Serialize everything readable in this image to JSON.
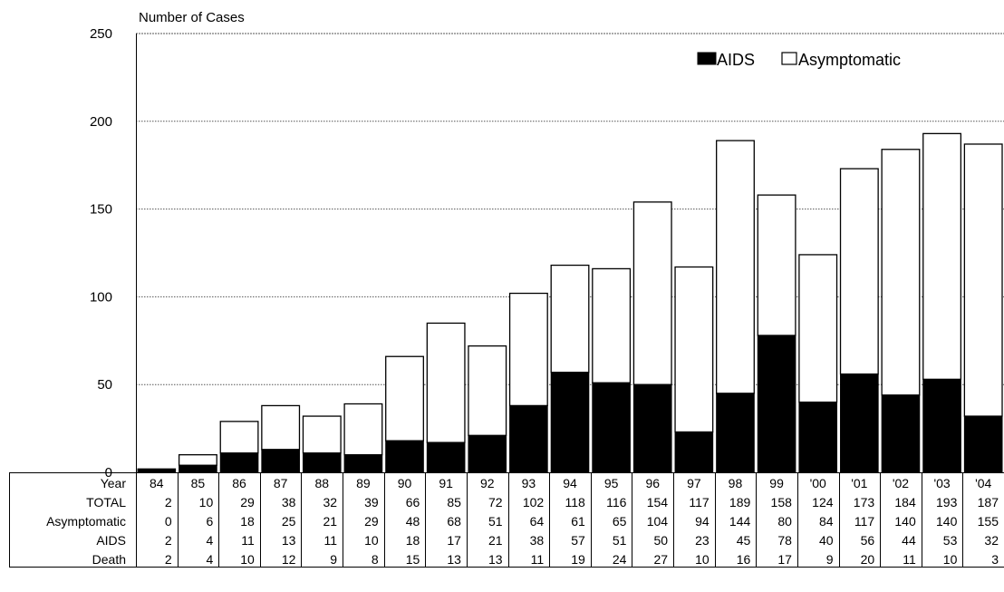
{
  "chart_data": {
    "type": "bar",
    "stacked": true,
    "ylabel": "Number of Cases",
    "ylim": [
      0,
      250
    ],
    "yticks": [
      0,
      50,
      100,
      150,
      200,
      250
    ],
    "grid": "horizontal dotted",
    "legend_position": "top-right",
    "categories": [
      "84",
      "85",
      "86",
      "87",
      "88",
      "89",
      "90",
      "91",
      "92",
      "93",
      "94",
      "95",
      "96",
      "97",
      "98",
      "99",
      "'00",
      "'01",
      "'02",
      "'03",
      "'04"
    ],
    "series": [
      {
        "name": "AIDS",
        "color": "#000000",
        "values": [
          2,
          4,
          11,
          13,
          11,
          10,
          18,
          17,
          21,
          38,
          57,
          51,
          50,
          23,
          45,
          78,
          40,
          56,
          44,
          53,
          32
        ]
      },
      {
        "name": "Asymptomatic",
        "color": "#ffffff",
        "values": [
          0,
          6,
          18,
          25,
          21,
          29,
          48,
          68,
          51,
          64,
          61,
          65,
          104,
          94,
          144,
          80,
          84,
          117,
          140,
          140,
          155
        ]
      }
    ],
    "table": {
      "header_label": "Year",
      "rows": [
        {
          "label": "TOTAL",
          "values": [
            2,
            10,
            29,
            38,
            32,
            39,
            66,
            85,
            72,
            102,
            118,
            116,
            154,
            117,
            189,
            158,
            124,
            173,
            184,
            193,
            187
          ]
        },
        {
          "label": "Asymptomatic",
          "values": [
            0,
            6,
            18,
            25,
            21,
            29,
            48,
            68,
            51,
            64,
            61,
            65,
            104,
            94,
            144,
            80,
            84,
            117,
            140,
            140,
            155
          ]
        },
        {
          "label": "AIDS",
          "values": [
            2,
            4,
            11,
            13,
            11,
            10,
            18,
            17,
            21,
            38,
            57,
            51,
            50,
            23,
            45,
            78,
            40,
            56,
            44,
            53,
            32
          ]
        },
        {
          "label": "Death",
          "values": [
            2,
            4,
            10,
            12,
            9,
            8,
            15,
            13,
            13,
            11,
            19,
            24,
            27,
            10,
            16,
            17,
            9,
            20,
            11,
            10,
            3
          ]
        }
      ]
    }
  }
}
